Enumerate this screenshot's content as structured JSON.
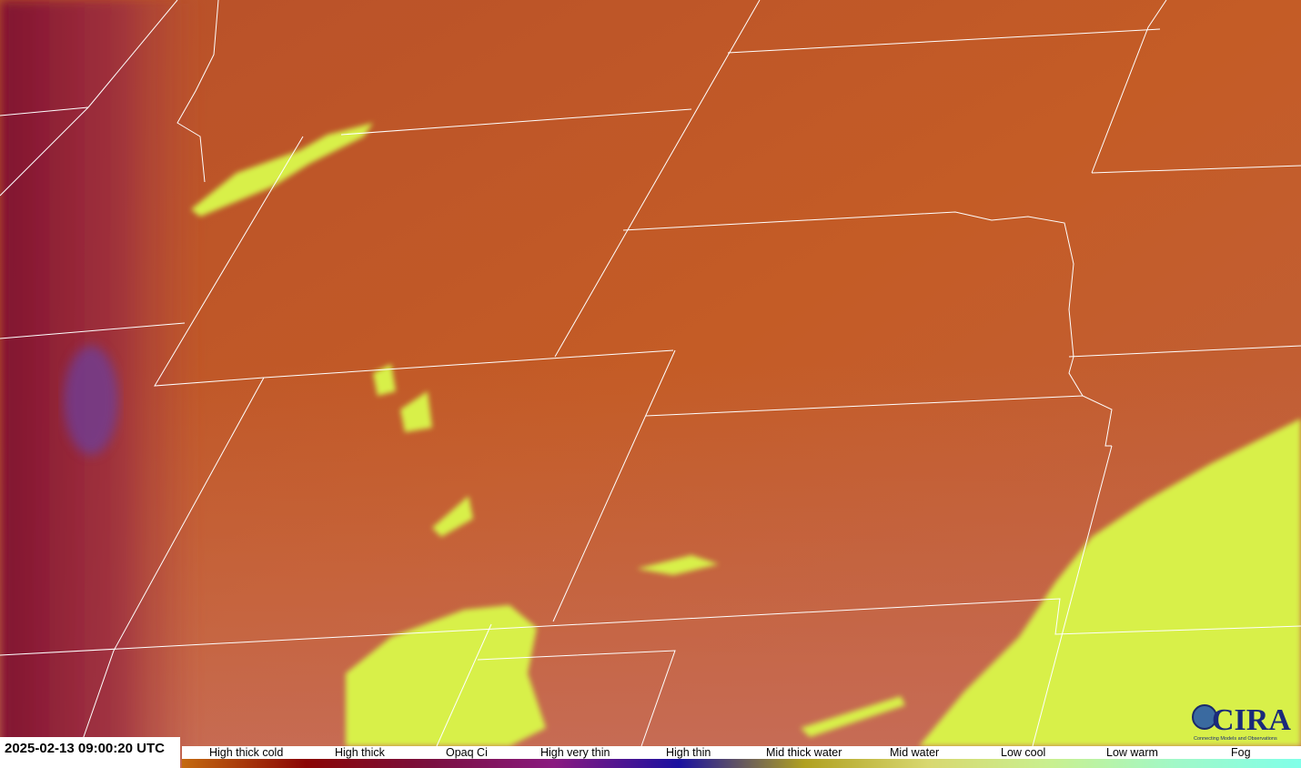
{
  "timestamp": "2025-02-13 09:00:20 UTC",
  "legend": {
    "labels": [
      "High thick cold",
      "High thick",
      "Opaq Ci",
      "High very thin",
      "High thin",
      "Mid thick water",
      "Mid water",
      "Low cool",
      "Low warm",
      "Fog"
    ],
    "colors": [
      "#c46a10",
      "#8a0505",
      "#7a1040",
      "#8a1a80",
      "#1a10a0",
      "#b0a020",
      "#d8d870",
      "#c8f090",
      "#a0f8c8",
      "#80ffe8"
    ]
  },
  "logo": {
    "text": "CIRA",
    "tagline": "Connecting Models and Observations"
  },
  "imagery_colors": {
    "background": "#c25a28",
    "cloud": "#d8f048",
    "west_edge": "#7a1030",
    "borders": "#ffffff"
  }
}
